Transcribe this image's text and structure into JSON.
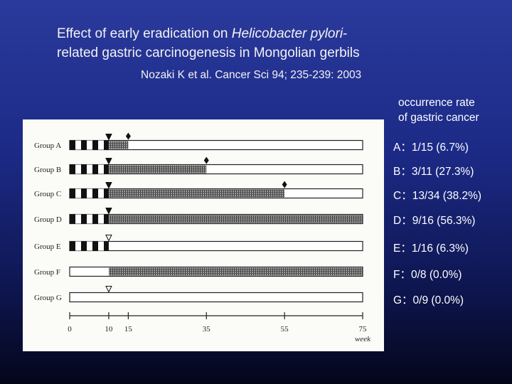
{
  "title": {
    "line1_prefix": "Effect of early eradication on ",
    "line1_italic": "Helicobacter pylori",
    "line1_suffix": "-",
    "line2": "related gastric carcinogenesis in Mongolian gerbils"
  },
  "citation": "Nozaki K et al. Cancer Sci 94; 235-239: 2003",
  "occurrence": {
    "header_line1": "occurrence rate",
    "header_line2": "of gastric cancer",
    "items": [
      "A：1/15 (6.7%)",
      "B：3/11 (27.3%)",
      "C：13/34 (38.2%)",
      "D：9/16 (56.3%)",
      "E：1/16 (6.3%)",
      "F：0/8 (0.0%)",
      "G：0/9 (0.0%)"
    ]
  },
  "chart_data": {
    "type": "timeline",
    "x_unit": "week",
    "x_range": [
      0,
      75
    ],
    "x_ticks": [
      0,
      10,
      15,
      35,
      55,
      75
    ],
    "groups": [
      {
        "name": "Group A",
        "checker_end": 10,
        "hatch_end": 15,
        "triangle": "filled",
        "diamond_at": 15
      },
      {
        "name": "Group B",
        "checker_end": 10,
        "hatch_end": 35,
        "triangle": "filled",
        "diamond_at": 35
      },
      {
        "name": "Group C",
        "checker_end": 10,
        "hatch_end": 55,
        "triangle": "filled",
        "diamond_at": 55
      },
      {
        "name": "Group D",
        "checker_end": 10,
        "hatch_end": 75,
        "triangle": "filled",
        "diamond_at": null
      },
      {
        "name": "Group E",
        "checker_end": 10,
        "hatch_end": 10,
        "triangle": "open",
        "diamond_at": null
      },
      {
        "name": "Group F",
        "checker_end": 0,
        "hatch_end": 75,
        "triangle": "none",
        "hatch_start": 10,
        "diamond_at": null
      },
      {
        "name": "Group G",
        "checker_end": 0,
        "hatch_end": 0,
        "triangle": "open",
        "diamond_at": null
      }
    ]
  }
}
